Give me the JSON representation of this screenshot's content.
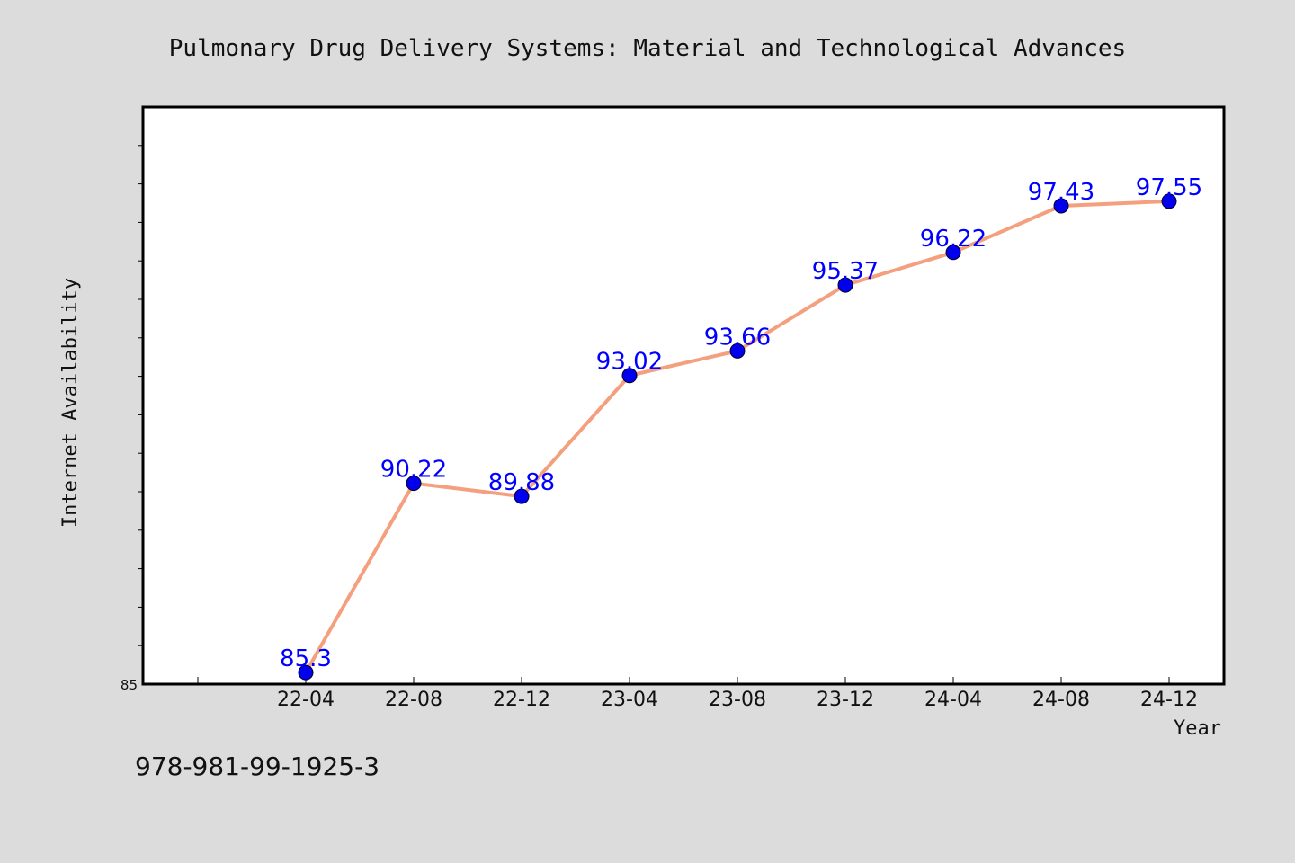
{
  "chart_data": {
    "type": "line",
    "title": "Pulmonary Drug Delivery Systems: Material and Technological Advances",
    "xlabel": "Year",
    "ylabel": "Internet Availability",
    "categories": [
      "22-04",
      "22-08",
      "22-12",
      "23-04",
      "23-08",
      "23-12",
      "24-04",
      "24-08",
      "24-12"
    ],
    "series": [
      {
        "values": [
          85.3,
          90.22,
          89.88,
          93.02,
          93.66,
          95.37,
          96.22,
          97.43,
          97.55
        ],
        "value_labels": [
          "85.3",
          "90.22",
          "89.88",
          "93.02",
          "93.66",
          "95.37",
          "96.22",
          "97.43",
          "97.55"
        ]
      }
    ],
    "ylim": [
      85,
      100
    ],
    "ytick_labels": [
      "85"
    ],
    "grid": false,
    "line_color": "#f4a07e",
    "marker_color": "#0000ee",
    "label_color": "#0000ff"
  },
  "footer": {
    "isbn": "978-981-99-1925-3"
  }
}
